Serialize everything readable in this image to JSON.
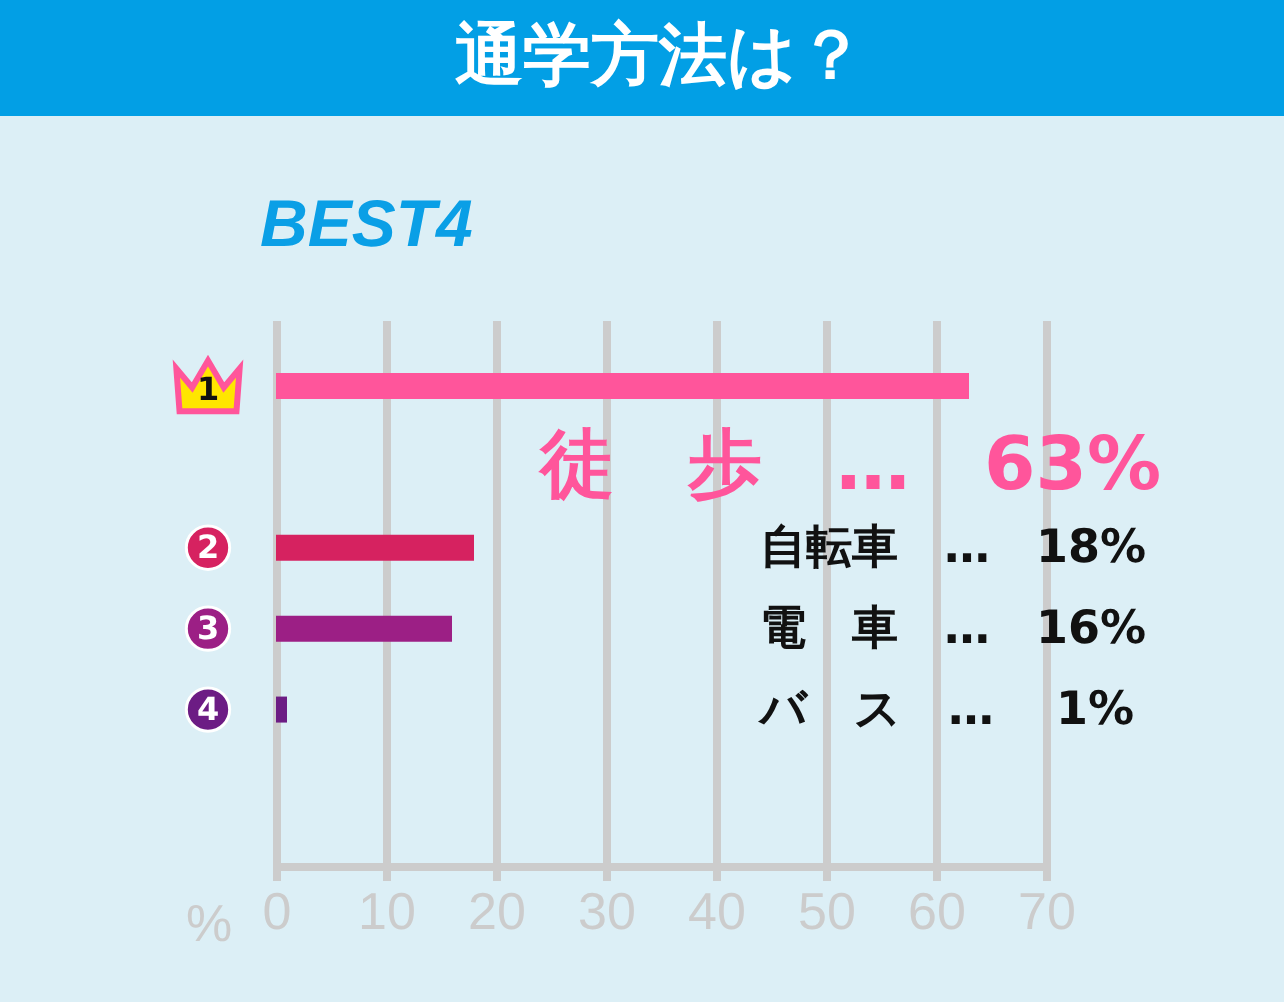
{
  "chart_data": {
    "type": "bar",
    "orientation": "horizontal",
    "title": "通学方法は？",
    "xlabel": "%",
    "categories": [
      "1",
      "2",
      "3",
      "4"
    ],
    "values": [
      63,
      18,
      16,
      1
    ],
    "colors": [
      "#ff559b",
      "#d62260",
      "#9c1f85",
      "#6c1c84"
    ],
    "value_labels": [
      "徒　歩　…　63%",
      "自転車　…　18%",
      "電　車　…　16%",
      "バ　ス　…　 1%"
    ],
    "xlim": [
      0,
      70
    ],
    "xticks": [
      0,
      10,
      20,
      30,
      40,
      50,
      60,
      70
    ],
    "grid": "x",
    "annotations": [
      "BEST4"
    ]
  }
}
